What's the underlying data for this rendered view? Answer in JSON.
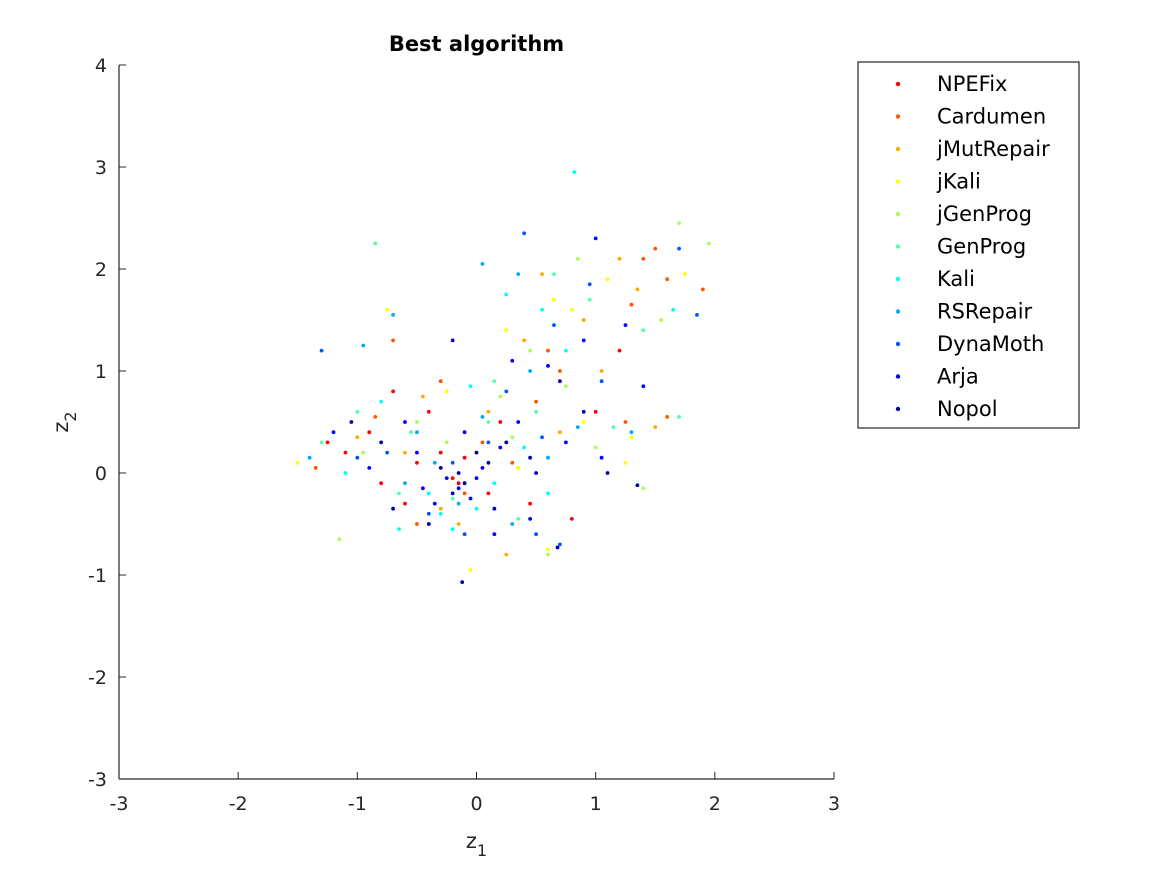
{
  "chart_data": {
    "type": "scatter",
    "title": "Best algorithm",
    "xlabel": "z",
    "xlabel_sub": "1",
    "ylabel": "z",
    "ylabel_sub": "2",
    "xlim": [
      -3,
      3
    ],
    "ylim": [
      -3,
      4
    ],
    "xticks": [
      -3,
      -2,
      -1,
      0,
      1,
      2,
      3
    ],
    "yticks": [
      -3,
      -2,
      -1,
      0,
      1,
      2,
      3,
      4
    ],
    "grid": false,
    "legend_position": "outside-top-right",
    "series": [
      {
        "name": "NPEFix",
        "color": "#ff0000",
        "points": [
          [
            -0.15,
            -0.1
          ],
          [
            -0.9,
            0.4
          ],
          [
            -1.1,
            0.2
          ],
          [
            -0.6,
            -0.3
          ],
          [
            -0.3,
            0.2
          ],
          [
            0.1,
            -0.2
          ],
          [
            0.8,
            -0.45
          ],
          [
            -0.7,
            0.8
          ],
          [
            -0.2,
            -0.05
          ],
          [
            -0.5,
            0.1
          ],
          [
            1.2,
            1.2
          ],
          [
            1.0,
            0.6
          ],
          [
            0.2,
            0.5
          ],
          [
            -0.8,
            -0.1
          ],
          [
            -0.4,
            0.6
          ],
          [
            0.45,
            -0.3
          ],
          [
            -1.25,
            0.3
          ],
          [
            -0.1,
            0.15
          ]
        ]
      },
      {
        "name": "Cardumen",
        "color": "#ff5500",
        "points": [
          [
            1.5,
            2.2
          ],
          [
            1.6,
            1.9
          ],
          [
            1.9,
            1.8
          ],
          [
            1.3,
            1.65
          ],
          [
            -0.7,
            1.3
          ],
          [
            -0.3,
            0.9
          ],
          [
            0.6,
            1.2
          ],
          [
            1.25,
            0.5
          ],
          [
            1.6,
            0.55
          ],
          [
            -1.35,
            0.05
          ],
          [
            0.5,
            0.7
          ],
          [
            0.05,
            0.3
          ],
          [
            -0.85,
            0.55
          ],
          [
            -0.1,
            -0.2
          ],
          [
            0.3,
            0.1
          ],
          [
            -0.5,
            -0.5
          ],
          [
            1.4,
            2.1
          ],
          [
            0.7,
            1.0
          ]
        ]
      },
      {
        "name": "jMutRepair",
        "color": "#ffaa00",
        "points": [
          [
            1.2,
            2.1
          ],
          [
            1.35,
            1.8
          ],
          [
            0.9,
            1.5
          ],
          [
            0.4,
            1.3
          ],
          [
            -0.15,
            -0.5
          ],
          [
            0.25,
            -0.8
          ],
          [
            -0.6,
            0.2
          ],
          [
            0.7,
            0.4
          ],
          [
            1.5,
            0.45
          ],
          [
            -0.3,
            -0.35
          ],
          [
            0.1,
            0.6
          ],
          [
            -1.0,
            0.35
          ],
          [
            0.55,
            1.95
          ],
          [
            1.05,
            1.0
          ],
          [
            -0.45,
            0.75
          ]
        ]
      },
      {
        "name": "jKali",
        "color": "#ffff00",
        "points": [
          [
            1.75,
            1.95
          ],
          [
            0.65,
            1.7
          ],
          [
            -1.5,
            0.1
          ],
          [
            0.25,
            1.4
          ],
          [
            1.25,
            0.1
          ],
          [
            -0.75,
            1.6
          ],
          [
            0.9,
            0.5
          ],
          [
            0.35,
            0.05
          ],
          [
            -0.25,
            0.8
          ],
          [
            1.1,
            1.9
          ],
          [
            0.6,
            -0.75
          ],
          [
            -0.05,
            -0.95
          ],
          [
            0.8,
            1.6
          ],
          [
            1.3,
            0.35
          ]
        ]
      },
      {
        "name": "jGenProg",
        "color": "#aaff55",
        "points": [
          [
            1.7,
            2.45
          ],
          [
            1.95,
            2.25
          ],
          [
            1.55,
            1.5
          ],
          [
            0.45,
            1.2
          ],
          [
            0.75,
            0.85
          ],
          [
            -1.15,
            -0.65
          ],
          [
            0.6,
            -0.8
          ],
          [
            -0.5,
            0.5
          ],
          [
            0.2,
            0.75
          ],
          [
            1.0,
            0.25
          ],
          [
            -0.95,
            0.2
          ],
          [
            0.85,
            2.1
          ],
          [
            0.3,
            0.35
          ],
          [
            -0.25,
            0.3
          ],
          [
            1.4,
            -0.15
          ]
        ]
      },
      {
        "name": "GenProg",
        "color": "#55ffaa",
        "points": [
          [
            -0.85,
            2.25
          ],
          [
            1.7,
            0.55
          ],
          [
            1.4,
            1.4
          ],
          [
            0.65,
            1.95
          ],
          [
            -1.3,
            0.3
          ],
          [
            -0.55,
            0.4
          ],
          [
            0.5,
            0.6
          ],
          [
            0.1,
            0.5
          ],
          [
            -0.2,
            -0.25
          ],
          [
            0.35,
            -0.45
          ],
          [
            0.95,
            1.7
          ],
          [
            -0.65,
            -0.2
          ],
          [
            0.15,
            0.9
          ],
          [
            1.15,
            0.45
          ],
          [
            -1.0,
            0.6
          ]
        ]
      },
      {
        "name": "Kali",
        "color": "#00ffff",
        "points": [
          [
            0.82,
            2.95
          ],
          [
            0.55,
            1.6
          ],
          [
            1.65,
            1.6
          ],
          [
            0.25,
            1.75
          ],
          [
            -0.4,
            -0.2
          ],
          [
            -0.2,
            -0.55
          ],
          [
            -0.05,
            0.85
          ],
          [
            0.75,
            1.2
          ],
          [
            -0.3,
            -0.4
          ],
          [
            0.6,
            -0.2
          ],
          [
            -1.1,
            0.0
          ],
          [
            0.0,
            -0.35
          ],
          [
            -0.65,
            -0.55
          ],
          [
            0.4,
            0.25
          ],
          [
            -0.8,
            0.7
          ],
          [
            0.15,
            -0.1
          ]
        ]
      },
      {
        "name": "RSRepair",
        "color": "#00aaff",
        "points": [
          [
            0.05,
            2.05
          ],
          [
            0.35,
            1.95
          ],
          [
            -0.95,
            1.25
          ],
          [
            -0.7,
            1.55
          ],
          [
            1.3,
            0.4
          ],
          [
            0.45,
            1.0
          ],
          [
            -0.5,
            0.4
          ],
          [
            -0.15,
            -0.3
          ],
          [
            0.6,
            0.15
          ],
          [
            -1.4,
            0.15
          ],
          [
            0.85,
            0.45
          ],
          [
            0.3,
            -0.5
          ],
          [
            -0.35,
            0.1
          ],
          [
            0.05,
            0.55
          ],
          [
            -0.6,
            -0.1
          ]
        ]
      },
      {
        "name": "DynaMoth",
        "color": "#0055ff",
        "points": [
          [
            0.4,
            2.35
          ],
          [
            1.7,
            2.2
          ],
          [
            0.95,
            1.85
          ],
          [
            1.85,
            1.55
          ],
          [
            -1.3,
            1.2
          ],
          [
            0.65,
            1.45
          ],
          [
            0.1,
            0.3
          ],
          [
            -0.2,
            0.1
          ],
          [
            -0.4,
            -0.4
          ],
          [
            0.5,
            -0.6
          ],
          [
            0.7,
            -0.7
          ],
          [
            -1.0,
            0.15
          ],
          [
            0.25,
            0.8
          ],
          [
            -0.75,
            0.2
          ],
          [
            1.05,
            0.9
          ],
          [
            -0.1,
            -0.6
          ],
          [
            0.55,
            0.35
          ]
        ]
      },
      {
        "name": "Arja",
        "color": "#0000ff",
        "points": [
          [
            1.0,
            2.3
          ],
          [
            1.25,
            1.45
          ],
          [
            0.9,
            1.3
          ],
          [
            1.05,
            0.15
          ],
          [
            0.3,
            1.1
          ],
          [
            -0.2,
            1.3
          ],
          [
            -1.2,
            0.4
          ],
          [
            -0.9,
            0.05
          ],
          [
            -0.5,
            0.2
          ],
          [
            -0.15,
            -0.15
          ],
          [
            -0.05,
            -0.25
          ],
          [
            0.05,
            0.05
          ],
          [
            -0.25,
            -0.05
          ],
          [
            0.45,
            -0.45
          ],
          [
            0.75,
            0.3
          ],
          [
            0.15,
            -0.6
          ],
          [
            -0.6,
            0.5
          ],
          [
            -0.35,
            -0.3
          ],
          [
            0.6,
            1.05
          ],
          [
            1.4,
            0.85
          ],
          [
            -0.45,
            -0.15
          ],
          [
            0.2,
            0.25
          ],
          [
            -0.1,
            0.4
          ],
          [
            0.35,
            0.5
          ],
          [
            0.0,
            -0.05
          ]
        ]
      },
      {
        "name": "Nopol",
        "color": "#0000aa",
        "points": [
          [
            -0.12,
            -1.07
          ],
          [
            0.68,
            -0.73
          ],
          [
            -0.3,
            0.05
          ],
          [
            -0.2,
            -0.2
          ],
          [
            -0.1,
            -0.1
          ],
          [
            0.1,
            0.1
          ],
          [
            0.5,
            0.0
          ],
          [
            -0.7,
            -0.35
          ],
          [
            0.9,
            0.6
          ],
          [
            -1.05,
            0.5
          ],
          [
            1.35,
            -0.12
          ],
          [
            0.25,
            0.3
          ],
          [
            -0.15,
            0.0
          ],
          [
            0.0,
            0.2
          ],
          [
            0.45,
            0.15
          ],
          [
            -0.4,
            -0.5
          ],
          [
            0.7,
            0.9
          ],
          [
            1.1,
            0.0
          ],
          [
            -0.8,
            0.3
          ],
          [
            0.15,
            -0.35
          ]
        ]
      }
    ]
  }
}
